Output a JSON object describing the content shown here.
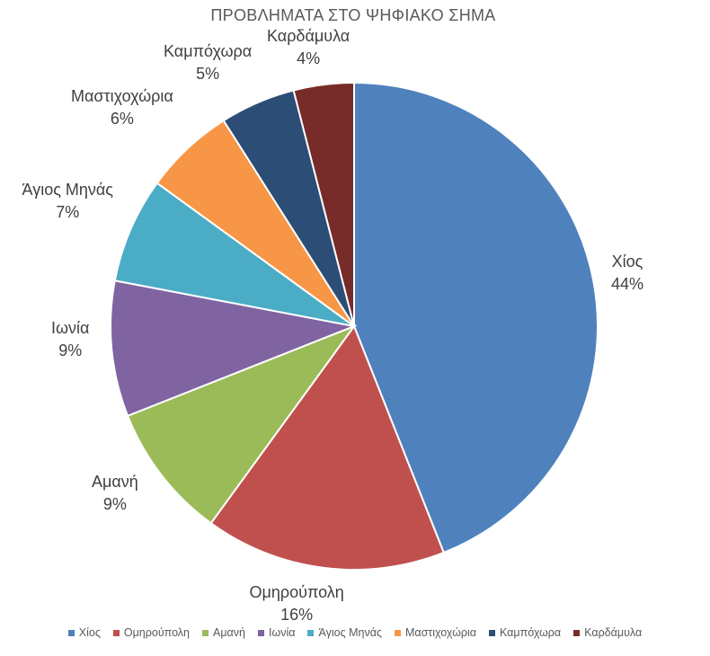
{
  "chart_data": {
    "type": "pie",
    "title": "ΠΡΟΒΛΗΜΑΤΑ ΣΤΟ ΨΗΦΙΑΚΟ ΣΗΜΑ",
    "categories": [
      "Χίος",
      "Ομηρούπολη",
      "Αμανή",
      "Ιωνία",
      "Άγιος Μηνάς",
      "Μαστιχοχώρια",
      "Καμπόχωρα",
      "Καρδάμυλα"
    ],
    "values": [
      44,
      16,
      9,
      9,
      7,
      6,
      5,
      4
    ],
    "labels": [
      "44%",
      "16%",
      "9%",
      "9%",
      "7%",
      "6%",
      "5%",
      "4%"
    ],
    "colors": [
      "#4f81bd",
      "#c0504d",
      "#9bbb59",
      "#8064a2",
      "#4bacc6",
      "#f79646",
      "#2c4d75",
      "#772c2a"
    ],
    "legend_position": "bottom"
  }
}
